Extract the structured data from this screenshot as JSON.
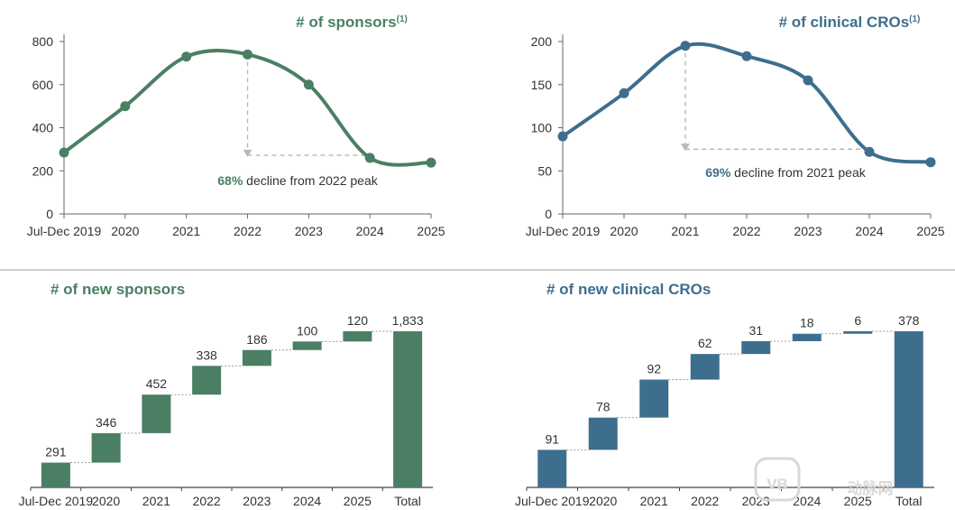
{
  "chart_data": [
    {
      "id": "sponsors",
      "type": "line",
      "title": "# of sponsors",
      "title_superscript": "(1)",
      "color": "#4a7f63",
      "categories": [
        "Jul-Dec 2019",
        "2020",
        "2021",
        "2022",
        "2023",
        "2024",
        "2025"
      ],
      "values": [
        285,
        500,
        730,
        740,
        600,
        260,
        238
      ],
      "ylim": [
        0,
        800
      ],
      "yticks": [
        0,
        200,
        400,
        600,
        800
      ],
      "annotation": {
        "bold": "68%",
        "text": " decline from 2022 peak",
        "from_category": "2022",
        "to_category": "2024"
      }
    },
    {
      "id": "cros",
      "type": "line",
      "title": "# of clinical CROs",
      "title_superscript": "(1)",
      "color": "#3e6e8e",
      "categories": [
        "Jul-Dec 2019",
        "2020",
        "2021",
        "2022",
        "2023",
        "2024",
        "2025"
      ],
      "values": [
        90,
        140,
        195,
        183,
        155,
        72,
        60
      ],
      "ylim": [
        0,
        200
      ],
      "yticks": [
        0,
        50,
        100,
        150,
        200
      ],
      "annotation": {
        "bold": "69%",
        "text": " decline from 2021 peak",
        "from_category": "2021",
        "to_category": "2024"
      }
    },
    {
      "id": "new-sponsors",
      "type": "bar",
      "subtype": "waterfall",
      "title": "# of new sponsors",
      "color": "#4a7f63",
      "categories": [
        "Jul-Dec 2019",
        "2020",
        "2021",
        "2022",
        "2023",
        "2024",
        "2025",
        "Total"
      ],
      "values": [
        291,
        346,
        452,
        338,
        186,
        100,
        120,
        1833
      ],
      "value_labels": [
        "291",
        "346",
        "452",
        "338",
        "186",
        "100",
        "120",
        "1,833"
      ]
    },
    {
      "id": "new-cros",
      "type": "bar",
      "subtype": "waterfall",
      "title": "# of new clinical CROs",
      "color": "#3e6e8e",
      "categories": [
        "Jul-Dec 2019",
        "2020",
        "2021",
        "2022",
        "2023",
        "2024",
        "2025",
        "Total"
      ],
      "values": [
        91,
        78,
        92,
        62,
        31,
        18,
        6,
        378
      ],
      "value_labels": [
        "91",
        "78",
        "92",
        "62",
        "31",
        "18",
        "6",
        "378"
      ]
    }
  ],
  "watermark": {
    "text": "动脉网"
  }
}
